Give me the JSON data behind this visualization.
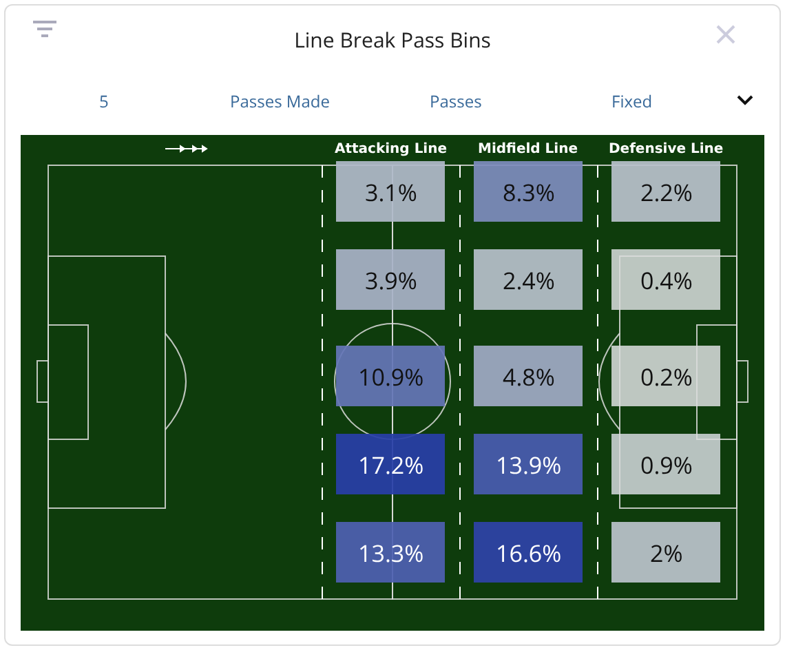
{
  "chart_data": {
    "type": "heatmap",
    "title": "Line Break Pass Bins",
    "annotations": [
      "5",
      "Passes Made",
      "Passes",
      "Fixed"
    ],
    "categories": [
      "Attacking Line",
      "Midfield Line",
      "Defensive Line"
    ],
    "y_categories": [
      null,
      null,
      null,
      null,
      null
    ],
    "cells": [
      [
        3.1,
        8.3,
        2.2
      ],
      [
        3.9,
        2.4,
        0.4
      ],
      [
        10.9,
        4.8,
        0.2
      ],
      [
        17.2,
        13.9,
        0.9
      ],
      [
        13.3,
        16.6,
        2
      ]
    ],
    "cell_labels": [
      [
        "3.1%",
        "8.3%",
        "2.2%"
      ],
      [
        "3.9%",
        "2.4%",
        "0.4%"
      ],
      [
        "10.9%",
        "4.8%",
        "0.2%"
      ],
      [
        "17.2%",
        "13.9%",
        "0.9%"
      ],
      [
        "13.3%",
        "16.6%",
        "2%"
      ]
    ]
  }
}
